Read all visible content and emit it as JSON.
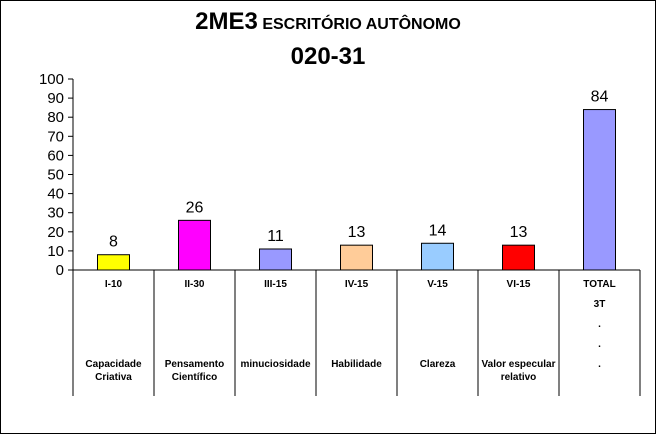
{
  "title": {
    "main": "2ME3",
    "sub": "ESCRITÓRIO AUTÔNOMO",
    "line2": "020-31"
  },
  "chart_data": {
    "type": "bar",
    "categories": [
      "I-10",
      "II-30",
      "III-15",
      "IV-15",
      "V-15",
      "VI-15",
      "TOTAL"
    ],
    "descriptions": [
      "Capacidade Criativa",
      "Pensamento Científico",
      "minuciosidade",
      "Habilidade",
      "Clareza",
      "Valor especular relativo",
      "3T"
    ],
    "values": [
      8,
      26,
      11,
      13,
      14,
      13,
      84
    ],
    "colors": [
      "#ffff00",
      "#ff00ff",
      "#9999ff",
      "#ffcc99",
      "#99ccff",
      "#ff0000",
      "#9999ff"
    ],
    "ylim": [
      0,
      100
    ],
    "yticks": [
      0,
      10,
      20,
      30,
      40,
      50,
      60,
      70,
      80,
      90,
      100
    ],
    "total_dots": [
      ".",
      ".",
      "."
    ],
    "grid": false,
    "legend": false
  }
}
